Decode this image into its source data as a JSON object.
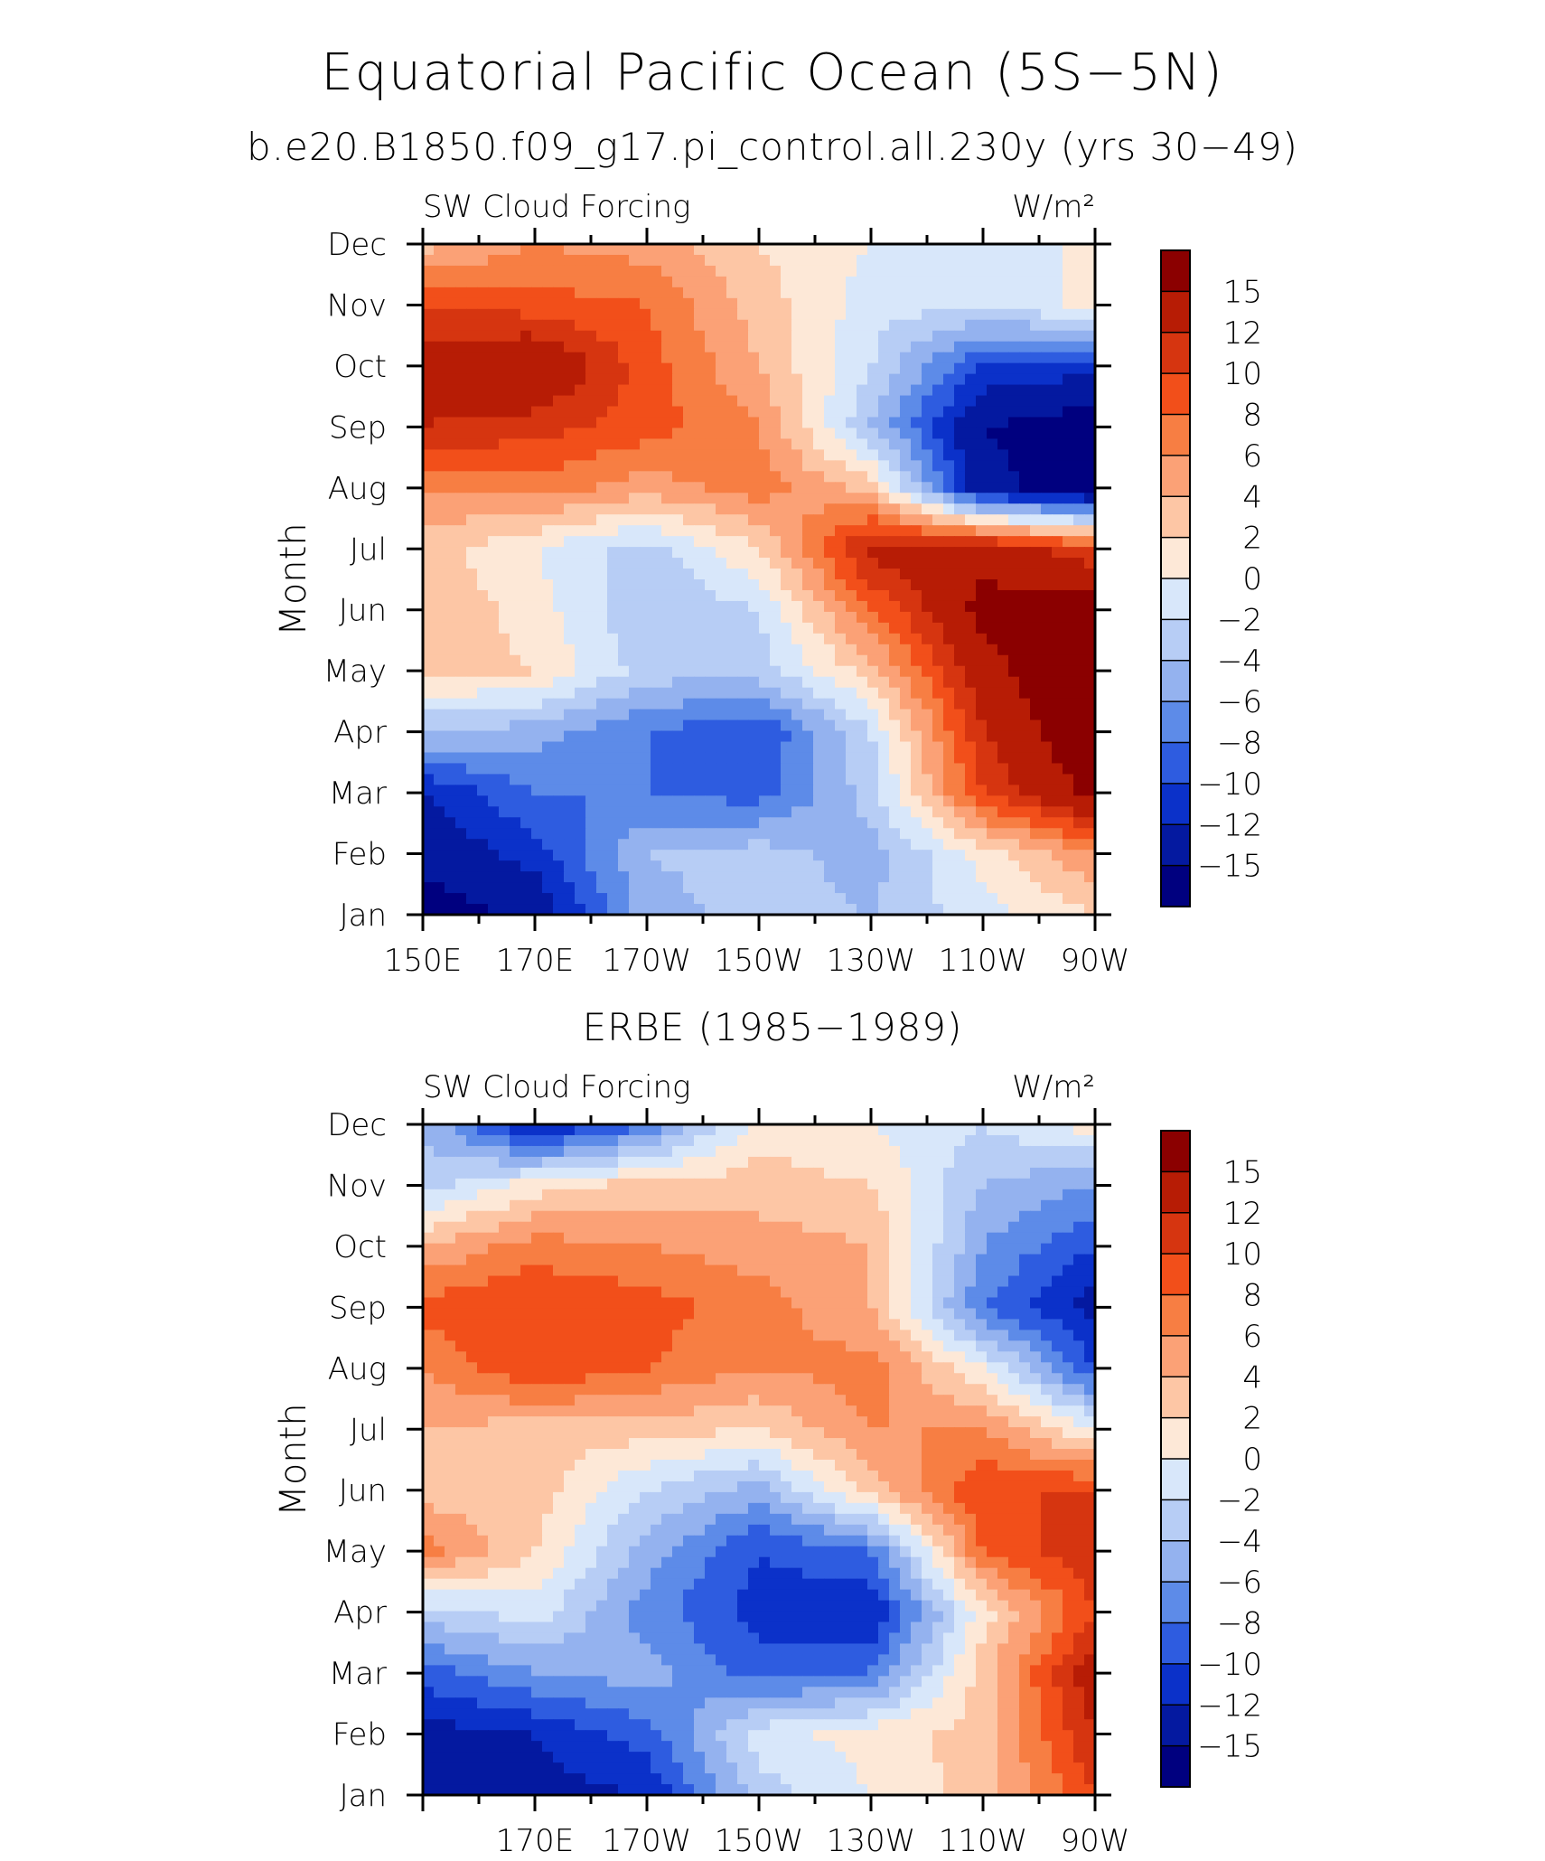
{
  "figure": {
    "title": "Equatorial Pacific Ocean (5S−5N)",
    "subtitle": "b.e20.B1850.f09_g17.pi_control.all.230y (yrs 30−49)"
  },
  "colorbar": {
    "levels": [
      "15",
      "12",
      "10",
      "8",
      "6",
      "4",
      "2",
      "0",
      "−2",
      "−4",
      "−6",
      "−8",
      "−10",
      "−12",
      "−15"
    ],
    "colors": [
      "#8b0000",
      "#b71c05",
      "#d63510",
      "#f24f1a",
      "#f77e43",
      "#fba176",
      "#fdc6a5",
      "#fde8d7",
      "#d8e7fa",
      "#b7cdf5",
      "#94b2ef",
      "#5d8be8",
      "#2e5ce0",
      "#0b31c9",
      "#0419a0",
      "#00007f"
    ]
  },
  "chart_data": [
    {
      "type": "heatmap",
      "title": "",
      "panel_label": "SW Cloud Forcing",
      "units_label": "W/m²",
      "ylabel": "Month",
      "xlabel": "",
      "x_range": [
        "150E",
        "90W"
      ],
      "x_tick_labels": [
        "150E",
        "170E",
        "170W",
        "150W",
        "130W",
        "110W",
        "90W"
      ],
      "y_tick_labels": [
        "Jan",
        "Feb",
        "Mar",
        "Apr",
        "May",
        "Jun",
        "Jul",
        "Aug",
        "Sep",
        "Oct",
        "Nov",
        "Dec"
      ],
      "lon_nodes": [
        150,
        170,
        190,
        210,
        230,
        250,
        270
      ],
      "month_nodes": [
        1,
        2,
        3,
        4,
        5,
        6,
        7,
        8,
        9,
        10,
        11,
        12
      ],
      "grid_values": [
        [
          -17,
          -14,
          -5,
          -3,
          -4,
          -1,
          2
        ],
        [
          -14,
          -11,
          -4,
          -3,
          -5,
          1,
          6
        ],
        [
          -12,
          -8,
          -8,
          -9,
          -3,
          10,
          16
        ],
        [
          -4,
          -5,
          -8,
          -10,
          -2,
          12,
          18
        ],
        [
          3,
          2,
          -3,
          -3,
          3,
          14,
          18
        ],
        [
          4,
          1,
          -4,
          -2,
          8,
          16,
          17
        ],
        [
          3,
          0,
          -3,
          2,
          13,
          14,
          10
        ],
        [
          6,
          7,
          5,
          7,
          3,
          -14,
          -17
        ],
        [
          12,
          11,
          9,
          6,
          -4,
          -15,
          -17
        ],
        [
          13,
          15,
          9,
          4,
          -2,
          -10,
          -11
        ],
        [
          10,
          9,
          8,
          3,
          -1,
          -2,
          1
        ],
        [
          3,
          6,
          5,
          2,
          0,
          -2,
          1
        ]
      ]
    },
    {
      "type": "heatmap",
      "title": "ERBE (1985−1989)",
      "panel_label": "SW Cloud Forcing",
      "units_label": "W/m²",
      "ylabel": "Month",
      "xlabel": "",
      "x_range": [
        "150E",
        "90W"
      ],
      "x_tick_labels": [
        "170E",
        "170W",
        "150W",
        "130W",
        "110W",
        "90W"
      ],
      "y_tick_labels": [
        "Jan",
        "Feb",
        "Mar",
        "Apr",
        "May",
        "Jun",
        "Jul",
        "Aug",
        "Sep",
        "Oct",
        "Nov",
        "Dec"
      ],
      "lon_nodes": [
        150,
        170,
        190,
        210,
        230,
        250,
        270
      ],
      "month_nodes": [
        1,
        2,
        3,
        4,
        5,
        6,
        7,
        8,
        9,
        10,
        11,
        12
      ],
      "grid_values": [
        [
          -12,
          -13,
          -12,
          -3,
          0,
          3,
          10
        ],
        [
          -13,
          -12,
          -9,
          -1,
          1,
          3,
          12
        ],
        [
          -9,
          -6,
          -5,
          -9,
          -8,
          3,
          14
        ],
        [
          -3,
          -1,
          -7,
          -11,
          -12,
          1,
          10
        ],
        [
          7,
          2,
          -5,
          -10,
          -8,
          8,
          12
        ],
        [
          3,
          3,
          -2,
          -5,
          3,
          10,
          10
        ],
        [
          4,
          3,
          3,
          2,
          6,
          6,
          0
        ],
        [
          6,
          10,
          8,
          6,
          7,
          0,
          -10
        ],
        [
          9,
          10,
          9,
          7,
          4,
          -8,
          -13
        ],
        [
          4,
          7,
          6,
          5,
          4,
          -6,
          -10
        ],
        [
          -3,
          1,
          3,
          3,
          2,
          -4,
          -6
        ],
        [
          -4,
          -13,
          -8,
          1,
          0,
          -2,
          1
        ]
      ]
    }
  ]
}
